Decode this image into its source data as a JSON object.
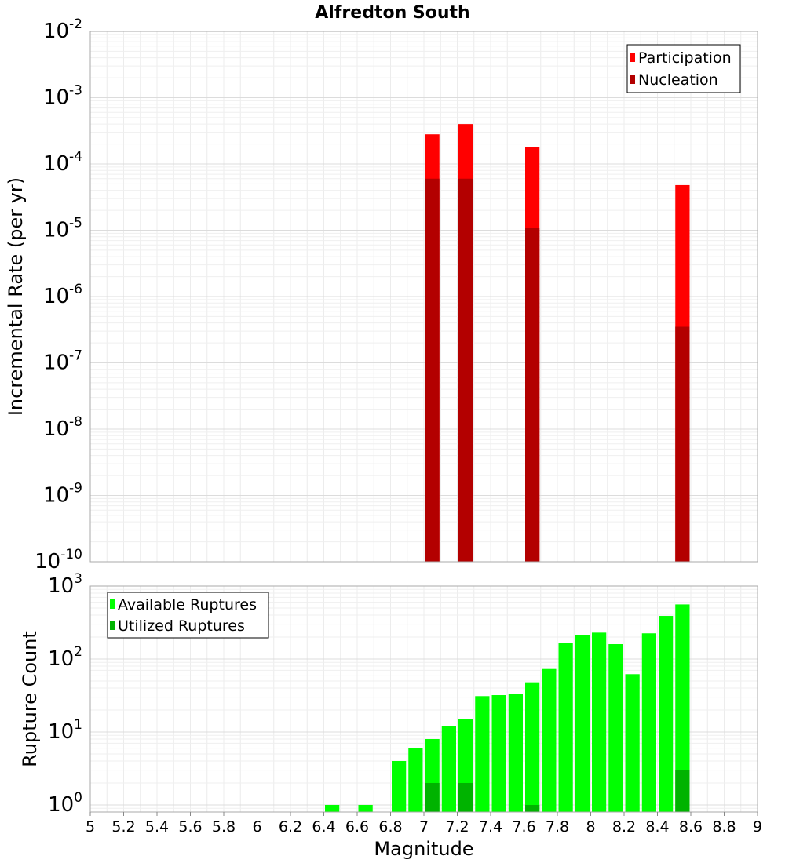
{
  "chart_data": [
    {
      "type": "bar",
      "title": "Alfredton South",
      "xlabel": "",
      "ylabel": "Incremental Rate (per yr)",
      "yscale": "log",
      "xlim": [
        5,
        9
      ],
      "ylim": [
        1e-10,
        0.01
      ],
      "grid": true,
      "legend_position": "top-right",
      "bin_width": 0.1,
      "y_tick_exponents": [
        "-10",
        "-9",
        "-8",
        "-7",
        "-6",
        "-5",
        "-4",
        "-3",
        "-2"
      ],
      "series": [
        {
          "name": "Participation",
          "color": "#ff0000",
          "points": [
            {
              "x": 7.05,
              "y": 0.00028
            },
            {
              "x": 7.25,
              "y": 0.0004
            },
            {
              "x": 7.65,
              "y": 0.00018
            },
            {
              "x": 8.55,
              "y": 4.8e-05
            }
          ]
        },
        {
          "name": "Nucleation",
          "color": "#b30000",
          "points": [
            {
              "x": 7.05,
              "y": 6e-05
            },
            {
              "x": 7.25,
              "y": 6e-05
            },
            {
              "x": 7.65,
              "y": 1.1e-05
            },
            {
              "x": 8.55,
              "y": 3.5e-07
            }
          ]
        }
      ]
    },
    {
      "type": "bar",
      "title": "",
      "xlabel": "Magnitude",
      "ylabel": "Rupture Count",
      "yscale": "log",
      "xlim": [
        5,
        9
      ],
      "ylim": [
        0.8,
        1000
      ],
      "grid": true,
      "legend_position": "top-left",
      "bin_width": 0.1,
      "x_ticks": [
        "5",
        "5.2",
        "5.4",
        "5.6",
        "5.8",
        "6",
        "6.2",
        "6.4",
        "6.6",
        "6.8",
        "7",
        "7.2",
        "7.4",
        "7.6",
        "7.8",
        "8",
        "8.2",
        "8.4",
        "8.6",
        "8.8",
        "9"
      ],
      "y_tick_exponents": [
        "0",
        "1",
        "2",
        "3"
      ],
      "series": [
        {
          "name": "Available Ruptures",
          "color": "#00ff00",
          "points": [
            {
              "x": 6.45,
              "y": 1
            },
            {
              "x": 6.65,
              "y": 1
            },
            {
              "x": 6.85,
              "y": 4
            },
            {
              "x": 6.95,
              "y": 6
            },
            {
              "x": 7.05,
              "y": 8
            },
            {
              "x": 7.15,
              "y": 12
            },
            {
              "x": 7.25,
              "y": 15
            },
            {
              "x": 7.35,
              "y": 31
            },
            {
              "x": 7.45,
              "y": 32
            },
            {
              "x": 7.55,
              "y": 33
            },
            {
              "x": 7.65,
              "y": 48
            },
            {
              "x": 7.75,
              "y": 73
            },
            {
              "x": 7.85,
              "y": 165
            },
            {
              "x": 7.95,
              "y": 215
            },
            {
              "x": 8.05,
              "y": 230
            },
            {
              "x": 8.15,
              "y": 160
            },
            {
              "x": 8.25,
              "y": 62
            },
            {
              "x": 8.35,
              "y": 225
            },
            {
              "x": 8.45,
              "y": 390
            },
            {
              "x": 8.55,
              "y": 560
            }
          ]
        },
        {
          "name": "Utilized Ruptures",
          "color": "#00b300",
          "points": [
            {
              "x": 7.05,
              "y": 2
            },
            {
              "x": 7.25,
              "y": 2
            },
            {
              "x": 7.65,
              "y": 1
            },
            {
              "x": 8.55,
              "y": 3
            }
          ]
        }
      ]
    }
  ]
}
